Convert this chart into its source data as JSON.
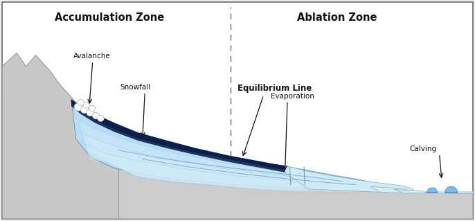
{
  "bg_color": "#f0f0f0",
  "white_bg": "#ffffff",
  "border_color": "#666666",
  "accum_zone_label": "Accumulation Zone",
  "ablation_zone_label": "Ablation Zone",
  "equilibrium_label": "Equilibrium Line",
  "snowfall_label": "Snowfall",
  "avalanche_label": "Avalanche",
  "evaporation_label": "Evaporation",
  "calving_label": "Calving",
  "glacier_light": "#b8ddf5",
  "glacier_lighter": "#d0eaf8",
  "glacier_mid": "#7bbce0",
  "glacier_dark": "#1a3565",
  "glacier_vdark": "#0e1f45",
  "mountain_color": "#c8c8c8",
  "mountain_border": "#999999",
  "ground_color": "#cccccc",
  "ground_border": "#aaaaaa",
  "water_color": "#b8e0f5",
  "iceberg_color": "#5599cc",
  "xlim": [
    0,
    10
  ],
  "ylim": [
    0,
    5
  ]
}
